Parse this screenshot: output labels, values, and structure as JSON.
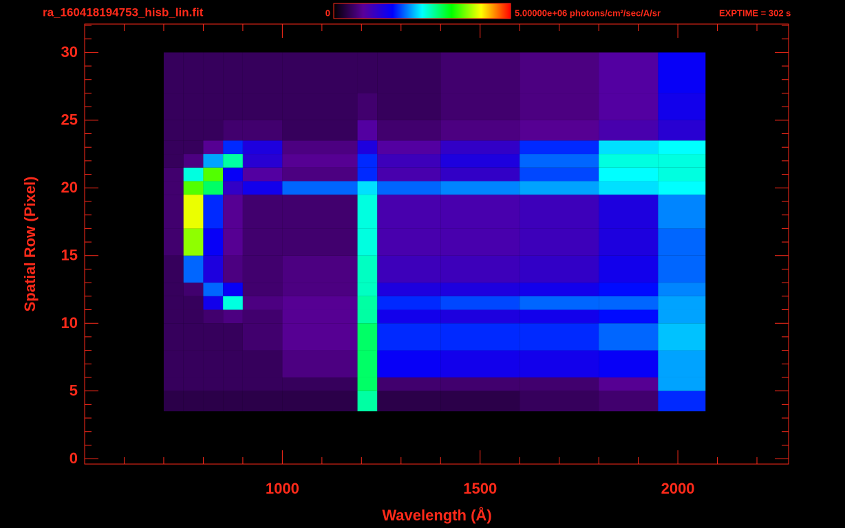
{
  "chart_data": {
    "type": "heatmap",
    "title": "ra_160418194753_hisb_lin.fit",
    "annotation": "EXPTIME = 302 s",
    "x_label": "Wavelength (Å)",
    "y_label": "Spatial Row (Pixel)",
    "axis_color": "#ff2a1a",
    "background": "#000000",
    "colormap": [
      "#000000",
      "#5a0099",
      "#0000ff",
      "#00ffff",
      "#00ff00",
      "#ffff00",
      "#ff0000"
    ],
    "zlim": [
      0,
      5000000
    ],
    "colorbar_ticks": [
      0,
      {
        "value": 5000000,
        "label": "5.00000e+06 photons/cm²/sec/A/sr"
      }
    ],
    "xlim": [
      500,
      2280
    ],
    "ylim": [
      -0.4,
      32.1
    ],
    "xticks": [
      1000,
      1500,
      2000
    ],
    "yticks": [
      0,
      5,
      10,
      15,
      20,
      25,
      30
    ],
    "xminorticks": [
      600,
      700,
      800,
      900,
      1100,
      1200,
      1300,
      1400,
      1600,
      1700,
      1800,
      1900,
      2100,
      2200
    ],
    "yminorticks": [
      1,
      2,
      3,
      4,
      6,
      7,
      8,
      9,
      11,
      12,
      13,
      14,
      16,
      17,
      18,
      19,
      21,
      22,
      23,
      24,
      26,
      27,
      28,
      29,
      31,
      32
    ],
    "x_edges": [
      700,
      750,
      800,
      850,
      900,
      1000,
      1190,
      1240,
      1400,
      1600,
      1800,
      1950,
      2070
    ],
    "y_edges": [
      3.5,
      5,
      6,
      8,
      10,
      11,
      12,
      13,
      15,
      17,
      19.5,
      20.5,
      21.5,
      22.5,
      23.5,
      25,
      27,
      30
    ],
    "values": [
      [
        400000.0,
        400000.0,
        400000.0,
        400000.0,
        400000.0,
        400000.0,
        2800000.0,
        400000.0,
        400000.0,
        500000.0,
        600000.0,
        1800000.0
      ],
      [
        500000.0,
        500000.0,
        500000.0,
        500000.0,
        500000.0,
        500000.0,
        3000000.0,
        600000.0,
        600000.0,
        600000.0,
        800000.0,
        2200000.0
      ],
      [
        500000.0,
        500000.0,
        500000.0,
        500000.0,
        500000.0,
        700000.0,
        3000000.0,
        1600000.0,
        1500000.0,
        1500000.0,
        1600000.0,
        2200000.0
      ],
      [
        500000.0,
        500000.0,
        500000.0,
        500000.0,
        600000.0,
        800000.0,
        3000000.0,
        1800000.0,
        1800000.0,
        1800000.0,
        2000000.0,
        2300000.0
      ],
      [
        500000.0,
        500000.0,
        600000.0,
        700000.0,
        600000.0,
        800000.0,
        2800000.0,
        1500000.0,
        1400000.0,
        1500000.0,
        1700000.0,
        2200000.0
      ],
      [
        500000.0,
        500000.0,
        1500000.0,
        2600000.0,
        700000.0,
        800000.0,
        2800000.0,
        1800000.0,
        1900000.0,
        2000000.0,
        2000000.0,
        2200000.0
      ],
      [
        500000.0,
        600000.0,
        2000000.0,
        1600000.0,
        600000.0,
        700000.0,
        2700000.0,
        1400000.0,
        1400000.0,
        1500000.0,
        1700000.0,
        2100000.0
      ],
      [
        500000.0,
        2000000.0,
        1400000.0,
        700000.0,
        600000.0,
        700000.0,
        2700000.0,
        1100000.0,
        1100000.0,
        1200000.0,
        1500000.0,
        2000000.0
      ],
      [
        600000.0,
        3800000.0,
        1600000.0,
        800000.0,
        600000.0,
        600000.0,
        2600000.0,
        1000000.0,
        1000000.0,
        1100000.0,
        1400000.0,
        2000000.0
      ],
      [
        600000.0,
        4100000.0,
        1800000.0,
        800000.0,
        600000.0,
        600000.0,
        2600000.0,
        1000000.0,
        1000000.0,
        1100000.0,
        1400000.0,
        2100000.0
      ],
      [
        600000.0,
        3600000.0,
        3000000.0,
        1200000.0,
        1500000.0,
        2000000.0,
        2400000.0,
        2000000.0,
        2100000.0,
        2200000.0,
        2400000.0,
        2500000.0
      ],
      [
        600000.0,
        2600000.0,
        3600000.0,
        1600000.0,
        900000.0,
        700000.0,
        1800000.0,
        1000000.0,
        1200000.0,
        1900000.0,
        2500000.0,
        2600000.0
      ],
      [
        500000.0,
        700000.0,
        2200000.0,
        2800000.0,
        1300000.0,
        800000.0,
        1800000.0,
        1100000.0,
        1400000.0,
        2000000.0,
        2600000.0,
        2600000.0
      ],
      [
        500000.0,
        500000.0,
        800000.0,
        1800000.0,
        1400000.0,
        700000.0,
        1400000.0,
        900000.0,
        1200000.0,
        1800000.0,
        2400000.0,
        2500000.0
      ],
      [
        500000.0,
        500000.0,
        500000.0,
        600000.0,
        600000.0,
        500000.0,
        900000.0,
        600000.0,
        700000.0,
        800000.0,
        1000000.0,
        1300000.0
      ],
      [
        500000.0,
        500000.0,
        500000.0,
        500000.0,
        500000.0,
        500000.0,
        600000.0,
        500000.0,
        600000.0,
        700000.0,
        900000.0,
        1500000.0
      ],
      [
        500000.0,
        500000.0,
        500000.0,
        500000.0,
        500000.0,
        500000.0,
        500000.0,
        500000.0,
        600000.0,
        700000.0,
        900000.0,
        1600000.0
      ]
    ]
  }
}
